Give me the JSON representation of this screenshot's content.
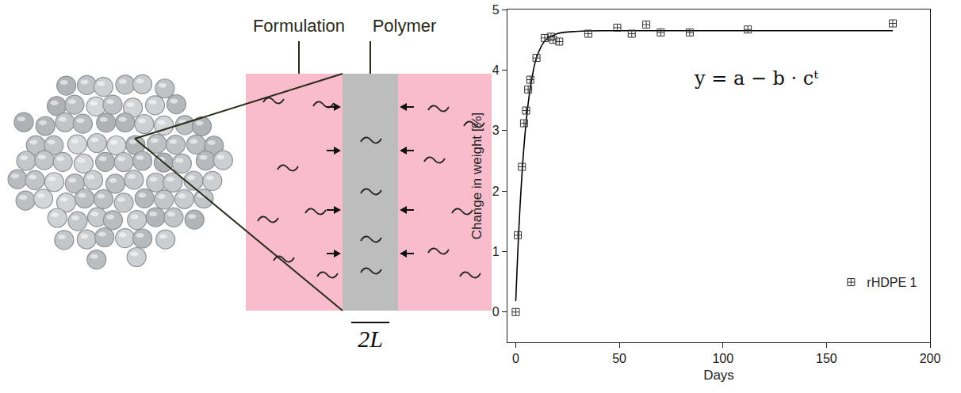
{
  "diagram": {
    "labels": [
      "Formulation",
      "Polymer"
    ],
    "thickness": "2L"
  },
  "chart_data": {
    "type": "scatter",
    "x_label": "Days",
    "y_label": "Change in weight [%]",
    "annotations": [
      "y = a − b · cᵗ"
    ],
    "xlim": [
      -4,
      200
    ],
    "ylim": [
      -0.5,
      5
    ],
    "xticks": [
      0,
      50,
      100,
      150,
      200
    ],
    "yticks": [
      0,
      1,
      2,
      3,
      4,
      5
    ],
    "grid": false,
    "legend": "bottom right",
    "series": [
      {
        "name": "rHDPE 1",
        "type": "scatter",
        "marker": "square-cross-open",
        "color": "#333333",
        "x": [
          0,
          1,
          3,
          4,
          5,
          6,
          7,
          10,
          14,
          17,
          18,
          21,
          35,
          49,
          56,
          63,
          70,
          84,
          112,
          182
        ],
        "values": [
          0,
          1.27,
          2.4,
          3.12,
          3.33,
          3.68,
          3.84,
          4.2,
          4.53,
          4.55,
          4.5,
          4.47,
          4.6,
          4.7,
          4.6,
          4.75,
          4.62,
          4.62,
          4.67,
          4.77
        ]
      },
      {
        "type": "line",
        "line_style": "solid",
        "color": "#000000",
        "x": [
          0,
          1,
          2,
          4,
          6,
          8,
          10,
          14,
          20,
          30,
          50,
          100,
          182
        ],
        "values": [
          0.18,
          1.0,
          1.7,
          2.75,
          3.45,
          3.9,
          4.2,
          4.48,
          4.6,
          4.64,
          4.65,
          4.65,
          4.65
        ]
      }
    ]
  }
}
